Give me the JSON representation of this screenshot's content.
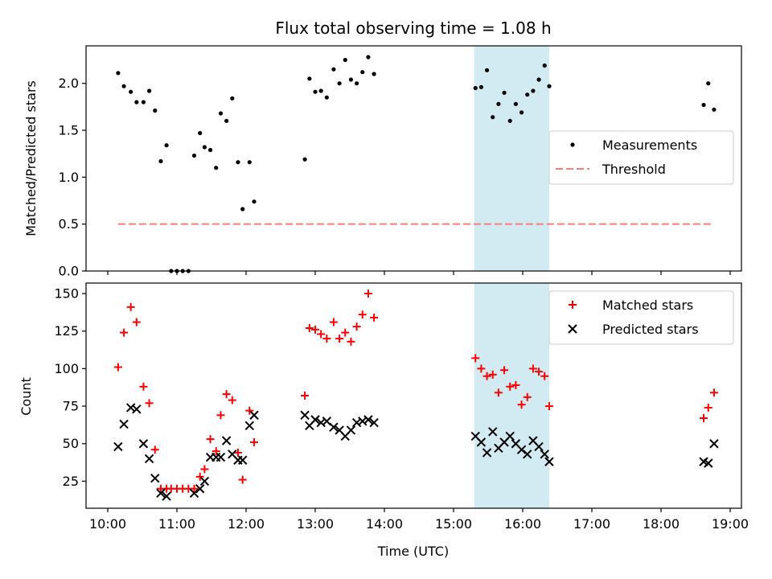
{
  "chart_data": {
    "type": "scatter",
    "title": "Flux total observing time = 1.08 h",
    "xlabel": "Time (UTC)",
    "x_ticks": [
      "10:00",
      "11:00",
      "12:00",
      "13:00",
      "14:00",
      "15:00",
      "16:00",
      "17:00",
      "18:00",
      "19:00"
    ],
    "highlight_span": {
      "start": "15:18",
      "end": "16:23",
      "color": "#add8e6"
    },
    "top": {
      "ylabel": "Matched/Predicted stars",
      "ylim": [
        0,
        2.4
      ],
      "y_ticks": [
        "0.0",
        "0.5",
        "1.0",
        "1.5",
        "2.0"
      ],
      "threshold": {
        "y": 0.5,
        "x_start": "10:09",
        "x_end": "18:46",
        "color": "#ff7b7b"
      },
      "legend": [
        "Measurements",
        "Threshold"
      ],
      "measurements": [
        [
          "10:09",
          2.11
        ],
        [
          "10:14",
          1.97
        ],
        [
          "10:20",
          1.91
        ],
        [
          "10:25",
          1.8
        ],
        [
          "10:31",
          1.8
        ],
        [
          "10:36",
          1.92
        ],
        [
          "10:41",
          1.71
        ],
        [
          "10:46",
          1.17
        ],
        [
          "10:51",
          1.34
        ],
        [
          "10:55",
          0.0
        ],
        [
          "11:00",
          0.0
        ],
        [
          "11:05",
          0.0
        ],
        [
          "11:10",
          0.0
        ],
        [
          "11:15",
          1.23
        ],
        [
          "11:20",
          1.47
        ],
        [
          "11:24",
          1.32
        ],
        [
          "11:29",
          1.29
        ],
        [
          "11:34",
          1.1
        ],
        [
          "11:38",
          1.68
        ],
        [
          "11:43",
          1.6
        ],
        [
          "11:48",
          1.84
        ],
        [
          "11:53",
          1.16
        ],
        [
          "11:57",
          0.66
        ],
        [
          "12:03",
          1.16
        ],
        [
          "12:07",
          0.74
        ],
        [
          "12:51",
          1.19
        ],
        [
          "12:55",
          2.05
        ],
        [
          "13:00",
          1.91
        ],
        [
          "13:05",
          1.92
        ],
        [
          "13:10",
          1.85
        ],
        [
          "13:16",
          2.15
        ],
        [
          "13:21",
          2.0
        ],
        [
          "13:26",
          2.25
        ],
        [
          "13:31",
          2.04
        ],
        [
          "13:36",
          2.0
        ],
        [
          "13:41",
          2.12
        ],
        [
          "13:46",
          2.28
        ],
        [
          "13:51",
          2.1
        ],
        [
          "15:19",
          1.95
        ],
        [
          "15:24",
          1.96
        ],
        [
          "15:29",
          2.14
        ],
        [
          "15:34",
          1.64
        ],
        [
          "15:39",
          1.78
        ],
        [
          "15:44",
          1.9
        ],
        [
          "15:49",
          1.6
        ],
        [
          "15:54",
          1.78
        ],
        [
          "15:59",
          1.69
        ],
        [
          "16:04",
          1.88
        ],
        [
          "16:09",
          1.92
        ],
        [
          "16:14",
          2.04
        ],
        [
          "16:19",
          2.19
        ],
        [
          "16:23",
          1.97
        ],
        [
          "18:37",
          1.77
        ],
        [
          "18:41",
          2.0
        ],
        [
          "18:46",
          1.72
        ]
      ]
    },
    "bottom": {
      "ylabel": "Count",
      "ylim": [
        7,
        157
      ],
      "y_ticks": [
        "25",
        "50",
        "75",
        "100",
        "125",
        "150"
      ],
      "legend": [
        "Matched stars",
        "Predicted stars"
      ],
      "series": [
        {
          "name": "Matched stars",
          "marker": "+",
          "color": "#ff0000",
          "points": [
            [
              "10:09",
              101
            ],
            [
              "10:14",
              124
            ],
            [
              "10:20",
              141
            ],
            [
              "10:25",
              131
            ],
            [
              "10:31",
              88
            ],
            [
              "10:36",
              77
            ],
            [
              "10:41",
              46
            ],
            [
              "10:46",
              20
            ],
            [
              "10:51",
              20
            ],
            [
              "10:55",
              20
            ],
            [
              "11:00",
              20
            ],
            [
              "11:05",
              20
            ],
            [
              "11:10",
              20
            ],
            [
              "11:15",
              20
            ],
            [
              "11:20",
              28
            ],
            [
              "11:24",
              33
            ],
            [
              "11:29",
              53
            ],
            [
              "11:34",
              45
            ],
            [
              "11:38",
              69
            ],
            [
              "11:43",
              83
            ],
            [
              "11:48",
              79
            ],
            [
              "11:53",
              44
            ],
            [
              "11:57",
              26
            ],
            [
              "12:03",
              72
            ],
            [
              "12:07",
              51
            ],
            [
              "12:51",
              82
            ],
            [
              "12:55",
              127
            ],
            [
              "13:00",
              126
            ],
            [
              "13:05",
              123
            ],
            [
              "13:10",
              120
            ],
            [
              "13:16",
              131
            ],
            [
              "13:21",
              120
            ],
            [
              "13:26",
              124
            ],
            [
              "13:31",
              118
            ],
            [
              "13:36",
              128
            ],
            [
              "13:41",
              136
            ],
            [
              "13:46",
              150
            ],
            [
              "13:51",
              134
            ],
            [
              "15:19",
              107
            ],
            [
              "15:24",
              100
            ],
            [
              "15:29",
              95
            ],
            [
              "15:34",
              96
            ],
            [
              "15:39",
              84
            ],
            [
              "15:44",
              99
            ],
            [
              "15:49",
              88
            ],
            [
              "15:54",
              89
            ],
            [
              "15:59",
              76
            ],
            [
              "16:04",
              81
            ],
            [
              "16:09",
              100
            ],
            [
              "16:14",
              98
            ],
            [
              "16:19",
              95
            ],
            [
              "16:23",
              75
            ],
            [
              "18:37",
              67
            ],
            [
              "18:41",
              74
            ],
            [
              "18:46",
              84
            ]
          ]
        },
        {
          "name": "Predicted stars",
          "marker": "x",
          "color": "#000000",
          "points": [
            [
              "10:09",
              48
            ],
            [
              "10:14",
              63
            ],
            [
              "10:20",
              74
            ],
            [
              "10:25",
              73
            ],
            [
              "10:31",
              50
            ],
            [
              "10:36",
              40
            ],
            [
              "10:41",
              27
            ],
            [
              "10:46",
              17
            ],
            [
              "10:51",
              15
            ],
            [
              "11:15",
              17
            ],
            [
              "11:20",
              20
            ],
            [
              "11:24",
              25
            ],
            [
              "11:29",
              41
            ],
            [
              "11:34",
              41
            ],
            [
              "11:38",
              41
            ],
            [
              "11:43",
              52
            ],
            [
              "11:48",
              43
            ],
            [
              "11:53",
              39
            ],
            [
              "11:57",
              39
            ],
            [
              "12:03",
              62
            ],
            [
              "12:07",
              69
            ],
            [
              "12:51",
              69
            ],
            [
              "12:55",
              62
            ],
            [
              "13:00",
              66
            ],
            [
              "13:05",
              64
            ],
            [
              "13:10",
              65
            ],
            [
              "13:16",
              61
            ],
            [
              "13:21",
              59
            ],
            [
              "13:26",
              55
            ],
            [
              "13:31",
              59
            ],
            [
              "13:36",
              64
            ],
            [
              "13:41",
              65
            ],
            [
              "13:46",
              66
            ],
            [
              "13:51",
              64
            ],
            [
              "15:19",
              55
            ],
            [
              "15:24",
              51
            ],
            [
              "15:29",
              44
            ],
            [
              "15:34",
              58
            ],
            [
              "15:39",
              47
            ],
            [
              "15:44",
              51
            ],
            [
              "15:49",
              55
            ],
            [
              "15:54",
              50
            ],
            [
              "15:59",
              46
            ],
            [
              "16:04",
              43
            ],
            [
              "16:09",
              52
            ],
            [
              "16:14",
              48
            ],
            [
              "16:19",
              43
            ],
            [
              "16:23",
              38
            ],
            [
              "18:37",
              38
            ],
            [
              "18:41",
              37
            ],
            [
              "18:46",
              50
            ]
          ]
        }
      ]
    }
  }
}
